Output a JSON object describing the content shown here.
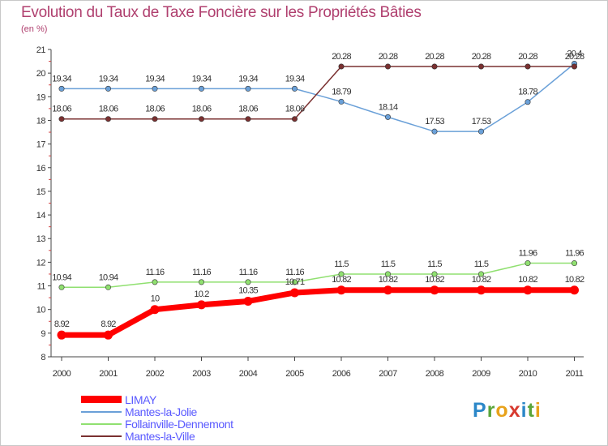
{
  "chart_data": {
    "type": "line",
    "title": "Evolution du Taux de Taxe Foncière sur les Propriétés Bâties",
    "unit_label": "(en %)",
    "xlabel": "",
    "ylabel": "",
    "ylim": [
      8,
      21
    ],
    "yticks": [
      8,
      9,
      10,
      11,
      12,
      13,
      14,
      15,
      16,
      17,
      18,
      19,
      20,
      21
    ],
    "categories": [
      "2000",
      "2001",
      "2002",
      "2003",
      "2004",
      "2005",
      "2006",
      "2007",
      "2008",
      "2009",
      "2010",
      "2011"
    ],
    "series": [
      {
        "name": "LIMAY",
        "color": "#ff0000",
        "values": [
          8.92,
          8.92,
          10,
          10.2,
          10.35,
          10.71,
          10.82,
          10.82,
          10.82,
          10.82,
          10.82,
          10.82
        ],
        "labels": [
          "8.92",
          "8.92",
          "10",
          "10.2",
          "10.35",
          "10.71",
          "10.82",
          "10.82",
          "10.82",
          "10.82",
          "10.82",
          "10.82"
        ]
      },
      {
        "name": "Mantes-la-Jolie",
        "color": "#6aa0d8",
        "values": [
          19.34,
          19.34,
          19.34,
          19.34,
          19.34,
          19.34,
          18.79,
          18.14,
          17.53,
          17.53,
          18.78,
          20.4
        ],
        "labels": [
          "19.34",
          "19.34",
          "19.34",
          "19.34",
          "19.34",
          "19.34",
          "18.79",
          "18.14",
          "17.53",
          "17.53",
          "18.78",
          "20.4"
        ]
      },
      {
        "name": "Follainville-Dennemont",
        "color": "#90e070",
        "values": [
          10.94,
          10.94,
          11.16,
          11.16,
          11.16,
          11.16,
          11.5,
          11.5,
          11.5,
          11.5,
          11.96,
          11.96
        ],
        "labels": [
          "10.94",
          "10.94",
          "11.16",
          "11.16",
          "11.16",
          "11.16",
          "11.5",
          "11.5",
          "11.5",
          "11.5",
          "11.96",
          "11.96"
        ]
      },
      {
        "name": "Mantes-la-Ville",
        "color": "#7a3030",
        "values": [
          18.06,
          18.06,
          18.06,
          18.06,
          18.06,
          18.06,
          20.28,
          20.28,
          20.28,
          20.28,
          20.28,
          20.28
        ],
        "labels": [
          "18.06",
          "18.06",
          "18.06",
          "18.06",
          "18.06",
          "18.06",
          "20.28",
          "20.28",
          "20.28",
          "20.28",
          "20.28",
          "20.28"
        ]
      }
    ],
    "legend_position": "bottom-left",
    "grid": false
  },
  "logo": {
    "p": "P",
    "r": "r",
    "o": "o",
    "x": "x",
    "i": "i",
    "t": "t",
    "i2": "i"
  }
}
